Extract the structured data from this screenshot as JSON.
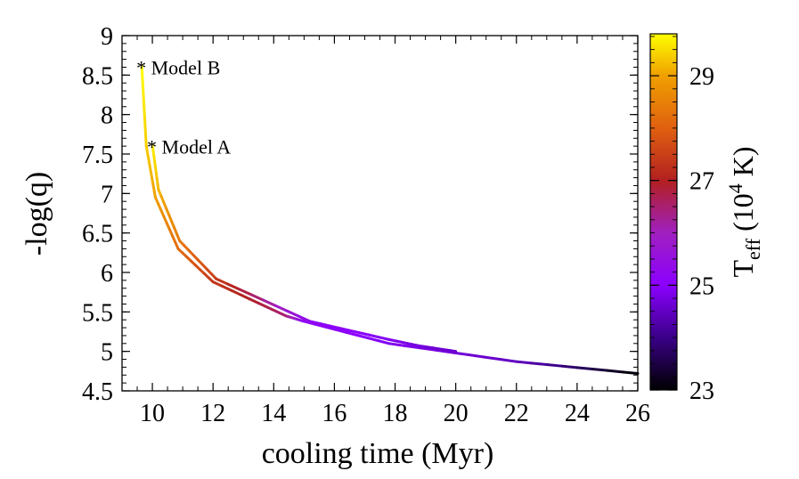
{
  "chart_data": {
    "type": "line",
    "xlabel": "cooling time (Myr)",
    "ylabel": "-log(q)",
    "xlim": [
      9,
      26
    ],
    "ylim": [
      4.5,
      9
    ],
    "x_ticks": [
      "10",
      "12",
      "14",
      "16",
      "18",
      "20",
      "22",
      "24",
      "26"
    ],
    "y_ticks": [
      "4.5",
      "5",
      "5.5",
      "6",
      "6.5",
      "7",
      "7.5",
      "8",
      "8.5",
      "9"
    ],
    "colorbar": {
      "label_main": "T",
      "label_sub": "eff",
      "label_open": " (10",
      "label_sup": "4",
      "label_close": " K)",
      "range": [
        23,
        29.8
      ],
      "ticks": [
        "23",
        "25",
        "27",
        "29"
      ],
      "colormap": [
        {
          "t": 23.0,
          "color": "#000000"
        },
        {
          "t": 24.0,
          "color": "#3a0088"
        },
        {
          "t": 25.0,
          "color": "#8b00ff"
        },
        {
          "t": 26.0,
          "color": "#a020c0"
        },
        {
          "t": 27.0,
          "color": "#b22020"
        },
        {
          "t": 28.0,
          "color": "#e06010"
        },
        {
          "t": 29.0,
          "color": "#f0a000"
        },
        {
          "t": 29.8,
          "color": "#ffff00"
        }
      ]
    },
    "series": [
      {
        "x": [
          9.65,
          9.8,
          10.1,
          10.85,
          12.0,
          14.4,
          15.0,
          17.8,
          22.0,
          26.0
        ],
        "y": [
          8.62,
          7.6,
          6.95,
          6.3,
          5.88,
          5.45,
          5.38,
          5.1,
          4.87,
          4.72
        ],
        "teff": [
          29.8,
          29.4,
          29.0,
          28.2,
          27.4,
          26.5,
          25.2,
          24.9,
          24.5,
          23.0
        ]
      },
      {
        "x": [
          10.0,
          10.2,
          10.9,
          12.1,
          15.2,
          17.8,
          18.8,
          20.0
        ],
        "y": [
          7.62,
          7.05,
          6.4,
          5.92,
          5.38,
          5.15,
          5.07,
          5.0
        ],
        "teff": [
          29.7,
          29.2,
          28.4,
          27.5,
          25.2,
          24.9,
          24.7,
          24.6
        ]
      }
    ],
    "annotations": [
      {
        "text": "* Model B",
        "x": 9.65,
        "y": 8.62
      },
      {
        "text": "* Model A",
        "x": 10.0,
        "y": 7.62
      }
    ]
  }
}
